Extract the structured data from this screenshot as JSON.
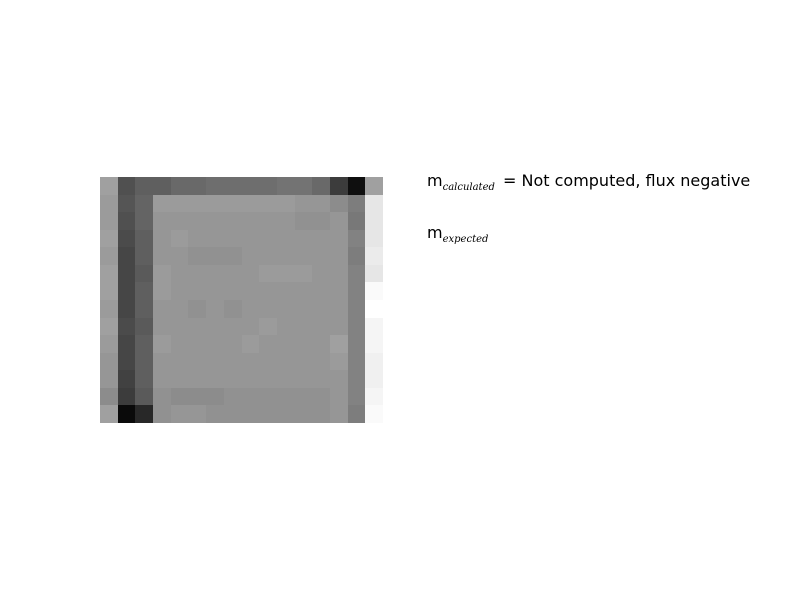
{
  "image": {
    "rows": 14,
    "cols": 16,
    "pixels": [
      [
        160,
        80,
        95,
        95,
        105,
        105,
        110,
        110,
        110,
        110,
        115,
        115,
        105,
        60,
        15,
        160
      ],
      [
        155,
        85,
        100,
        155,
        155,
        155,
        155,
        155,
        155,
        155,
        155,
        150,
        150,
        140,
        125,
        230
      ],
      [
        155,
        80,
        100,
        150,
        150,
        150,
        150,
        150,
        150,
        150,
        150,
        145,
        145,
        150,
        120,
        230
      ],
      [
        160,
        75,
        95,
        150,
        155,
        150,
        150,
        150,
        150,
        150,
        150,
        150,
        150,
        150,
        130,
        230
      ],
      [
        155,
        70,
        95,
        150,
        150,
        145,
        145,
        145,
        150,
        150,
        150,
        150,
        150,
        150,
        125,
        235
      ],
      [
        160,
        70,
        90,
        155,
        150,
        150,
        150,
        150,
        150,
        155,
        155,
        155,
        150,
        150,
        130,
        230
      ],
      [
        160,
        70,
        95,
        155,
        150,
        150,
        150,
        150,
        150,
        150,
        150,
        150,
        150,
        150,
        130,
        250
      ],
      [
        155,
        70,
        95,
        150,
        150,
        145,
        150,
        145,
        150,
        150,
        150,
        150,
        150,
        150,
        130,
        255
      ],
      [
        160,
        75,
        90,
        150,
        150,
        150,
        150,
        150,
        150,
        155,
        150,
        150,
        150,
        150,
        130,
        245
      ],
      [
        155,
        70,
        95,
        155,
        150,
        150,
        150,
        150,
        155,
        150,
        150,
        150,
        150,
        160,
        130,
        245
      ],
      [
        150,
        70,
        95,
        150,
        150,
        150,
        150,
        150,
        150,
        150,
        150,
        150,
        150,
        155,
        130,
        240
      ],
      [
        150,
        65,
        95,
        150,
        150,
        150,
        150,
        150,
        150,
        150,
        150,
        150,
        150,
        150,
        130,
        240
      ],
      [
        140,
        60,
        90,
        145,
        140,
        140,
        140,
        145,
        145,
        145,
        145,
        145,
        145,
        150,
        130,
        245
      ],
      [
        160,
        10,
        40,
        145,
        150,
        150,
        145,
        145,
        145,
        145,
        145,
        145,
        145,
        150,
        125,
        250
      ]
    ]
  },
  "labels": {
    "calculated": {
      "prefix": "m",
      "subscript": "calculated",
      "suffix": " = Not computed, flux negative"
    },
    "expected": {
      "prefix": "m",
      "subscript": "expected"
    }
  }
}
